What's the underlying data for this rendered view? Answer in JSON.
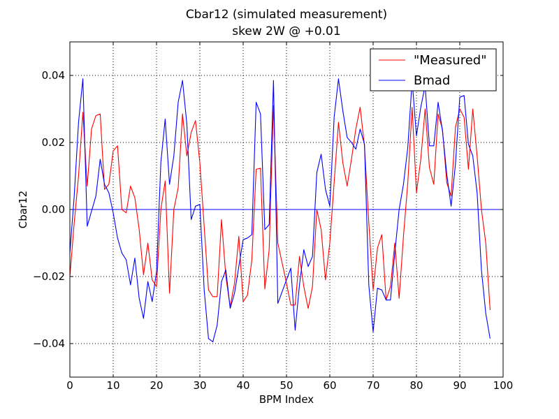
{
  "chart_data": {
    "type": "line",
    "title": "Cbar12 (simulated measurement)",
    "subtitle": "skew 2W @ +0.01",
    "xlabel": "BPM Index",
    "ylabel": "Cbar12",
    "xlim": [
      0,
      100
    ],
    "ylim": [
      -0.05,
      0.05
    ],
    "xticks": [
      0,
      10,
      20,
      30,
      40,
      50,
      60,
      70,
      80,
      90,
      100
    ],
    "yticks": [
      -0.04,
      -0.02,
      0.0,
      0.02,
      0.04
    ],
    "xtick_labels": [
      "0",
      "10",
      "20",
      "30",
      "40",
      "50",
      "60",
      "70",
      "80",
      "90",
      "100"
    ],
    "ytick_labels": [
      "−0.04",
      "−0.02",
      "0.00",
      "0.02",
      "0.04"
    ],
    "grid": true,
    "legend_position": "top-right",
    "zero_line": 0.0,
    "zero_line_color": "#0000ff",
    "series": [
      {
        "name": "\"Measured\"",
        "color": "#ff0000",
        "x": [
          0,
          1,
          2,
          3,
          4,
          5,
          6,
          7,
          8,
          9,
          10,
          11,
          12,
          13,
          14,
          15,
          16,
          17,
          18,
          19,
          20,
          21,
          22,
          23,
          24,
          25,
          26,
          27,
          28,
          29,
          30,
          31,
          32,
          33,
          34,
          35,
          36,
          37,
          38,
          39,
          40,
          41,
          42,
          43,
          44,
          45,
          46,
          47,
          48,
          49,
          50,
          51,
          52,
          53,
          54,
          55,
          56,
          57,
          58,
          59,
          60,
          61,
          62,
          63,
          64,
          65,
          66,
          67,
          68,
          69,
          70,
          71,
          72,
          73,
          74,
          75,
          76,
          77,
          78,
          79,
          80,
          81,
          82,
          83,
          84,
          85,
          86,
          87,
          88,
          89,
          90,
          91,
          92,
          93,
          94,
          95,
          96,
          97
        ],
        "y": [
          -0.02,
          -0.004,
          0.01,
          0.029,
          0.007,
          0.024,
          0.028,
          0.0285,
          0.006,
          0.0075,
          0.0175,
          0.019,
          0.0,
          -0.001,
          0.007,
          0.0035,
          -0.006,
          -0.0195,
          -0.01,
          -0.021,
          -0.023,
          0.0,
          0.0085,
          -0.025,
          0.0,
          0.0065,
          0.0285,
          0.016,
          0.023,
          0.0265,
          0.014,
          -0.005,
          -0.024,
          -0.026,
          -0.026,
          -0.003,
          -0.02,
          -0.029,
          -0.022,
          -0.008,
          -0.0275,
          -0.0255,
          -0.015,
          0.012,
          0.0123,
          -0.0237,
          -0.012,
          0.031,
          -0.01,
          -0.016,
          -0.022,
          -0.0285,
          -0.0285,
          -0.014,
          -0.023,
          -0.0295,
          -0.023,
          0.0,
          -0.006,
          -0.021,
          -0.01,
          0.008,
          0.026,
          0.014,
          0.007,
          0.015,
          0.024,
          0.0305,
          0.019,
          -0.004,
          -0.024,
          -0.0115,
          -0.0075,
          -0.027,
          -0.023,
          -0.01,
          -0.0265,
          -0.008,
          0.008,
          0.0305,
          0.005,
          0.015,
          0.03,
          0.0125,
          0.0075,
          0.0285,
          0.024,
          0.008,
          0.004,
          0.0245,
          0.03,
          0.0275,
          0.012,
          0.03,
          0.016,
          0.0,
          -0.01,
          -0.03
        ]
      },
      {
        "name": "Bmad",
        "color": "#0000ff",
        "x": [
          0,
          1,
          2,
          3,
          4,
          5,
          6,
          7,
          8,
          9,
          10,
          11,
          12,
          13,
          14,
          15,
          16,
          17,
          18,
          19,
          20,
          21,
          22,
          23,
          24,
          25,
          26,
          27,
          28,
          29,
          30,
          31,
          32,
          33,
          34,
          35,
          36,
          37,
          38,
          39,
          40,
          41,
          42,
          43,
          44,
          45,
          46,
          47,
          48,
          49,
          50,
          51,
          52,
          53,
          54,
          55,
          56,
          57,
          58,
          59,
          60,
          61,
          62,
          63,
          64,
          65,
          66,
          67,
          68,
          69,
          70,
          71,
          72,
          73,
          74,
          75,
          76,
          77,
          78,
          79,
          80,
          81,
          82,
          83,
          84,
          85,
          86,
          87,
          88,
          89,
          90,
          91,
          92,
          93,
          94,
          95,
          96,
          97
        ],
        "y": [
          -0.013,
          0.004,
          0.026,
          0.039,
          -0.005,
          -0.0005,
          0.004,
          0.015,
          0.0075,
          0.005,
          -0.001,
          -0.0085,
          -0.013,
          -0.015,
          -0.0225,
          -0.0145,
          -0.0265,
          -0.0325,
          -0.0215,
          -0.0275,
          -0.0185,
          0.014,
          0.027,
          0.0075,
          0.016,
          0.032,
          0.0385,
          0.0255,
          -0.003,
          0.001,
          0.0015,
          -0.024,
          -0.0385,
          -0.0395,
          -0.0345,
          -0.0215,
          -0.018,
          -0.0295,
          -0.025,
          -0.017,
          -0.009,
          -0.0085,
          -0.0075,
          0.032,
          0.0285,
          -0.006,
          -0.0045,
          0.0385,
          -0.028,
          -0.0245,
          -0.021,
          -0.0175,
          -0.036,
          -0.0225,
          -0.012,
          -0.017,
          -0.014,
          0.011,
          0.0165,
          0.006,
          0.001,
          0.0275,
          0.039,
          0.0295,
          0.0215,
          0.02,
          0.018,
          0.024,
          0.0195,
          -0.0225,
          -0.0365,
          -0.0235,
          -0.024,
          -0.027,
          -0.027,
          -0.013,
          0.0,
          0.0075,
          0.0185,
          0.0385,
          0.022,
          0.0305,
          0.037,
          0.019,
          0.019,
          0.032,
          0.0235,
          0.0105,
          0.001,
          0.0135,
          0.0335,
          0.034,
          0.0195,
          0.016,
          0.005,
          -0.018,
          -0.031,
          -0.0385
        ]
      }
    ]
  }
}
